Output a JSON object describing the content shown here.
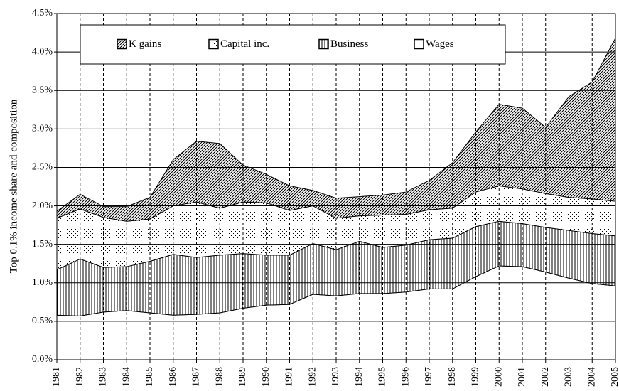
{
  "chart_data": {
    "type": "stacked_area",
    "y_label": "Top 0.1% income share and composition",
    "categories": [
      "1981",
      "1982",
      "1983",
      "1984",
      "1985",
      "1986",
      "1987",
      "1988",
      "1989",
      "1990",
      "1991",
      "1992",
      "1993",
      "1994",
      "1995",
      "1996",
      "1997",
      "1998",
      "1999",
      "2000",
      "2001",
      "2002",
      "2003",
      "2004",
      "2005"
    ],
    "series": [
      {
        "name": "K gains",
        "color": "#000000",
        "pattern": "diagonal",
        "values": [
          0.09,
          0.19,
          0.14,
          0.19,
          0.28,
          0.6,
          0.79,
          0.84,
          0.48,
          0.37,
          0.32,
          0.2,
          0.26,
          0.25,
          0.26,
          0.29,
          0.38,
          0.59,
          0.78,
          1.06,
          1.05,
          0.86,
          1.31,
          1.52,
          2.12
        ]
      },
      {
        "name": "Capital inc.",
        "color": "#000000",
        "pattern": "dots",
        "values": [
          0.67,
          0.65,
          0.65,
          0.59,
          0.55,
          0.63,
          0.72,
          0.61,
          0.67,
          0.68,
          0.58,
          0.49,
          0.41,
          0.33,
          0.42,
          0.4,
          0.39,
          0.39,
          0.45,
          0.46,
          0.45,
          0.44,
          0.43,
          0.45,
          0.45
        ]
      },
      {
        "name": "Business",
        "color": "#000000",
        "pattern": "vertical",
        "values": [
          0.59,
          0.74,
          0.58,
          0.57,
          0.67,
          0.79,
          0.74,
          0.75,
          0.71,
          0.65,
          0.64,
          0.66,
          0.6,
          0.68,
          0.6,
          0.61,
          0.64,
          0.66,
          0.65,
          0.58,
          0.56,
          0.58,
          0.62,
          0.65,
          0.65
        ]
      },
      {
        "name": "Wages",
        "color": "#000000",
        "pattern": "none",
        "values": [
          0.58,
          0.57,
          0.62,
          0.64,
          0.61,
          0.58,
          0.59,
          0.61,
          0.67,
          0.71,
          0.72,
          0.85,
          0.83,
          0.86,
          0.86,
          0.88,
          0.92,
          0.92,
          1.08,
          1.22,
          1.21,
          1.14,
          1.06,
          0.99,
          0.96
        ]
      }
    ],
    "ylim": [
      0,
      4.5
    ],
    "yticks": [
      {
        "value": 0,
        "label": "0.0%"
      },
      {
        "value": 0.5,
        "label": "0.5%"
      },
      {
        "value": 1,
        "label": "1.0%"
      },
      {
        "value": 1.5,
        "label": "1.5%"
      },
      {
        "value": 2,
        "label": "2.0%"
      },
      {
        "value": 2.5,
        "label": "2.5%"
      },
      {
        "value": 3,
        "label": "3.0%"
      },
      {
        "value": 3.5,
        "label": "3.5%"
      },
      {
        "value": 4,
        "label": "4.0%"
      },
      {
        "value": 4.5,
        "label": "4.5%"
      }
    ],
    "grid": true,
    "legend": "top"
  }
}
